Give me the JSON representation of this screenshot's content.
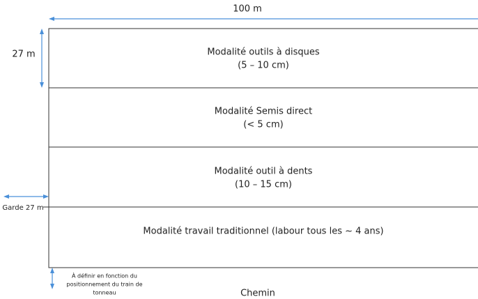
{
  "width_label": "100 m",
  "height_label": "27 m",
  "guard_label": "Garde 27 m",
  "plots": [
    {
      "label": "Modalité outils à disques",
      "depth": "(5 – 10 cm)"
    },
    {
      "label": "Modalité Semis direct",
      "depth": "(< 5 cm)"
    },
    {
      "label": "Modalité outil à dents",
      "depth": "(10 – 15 cm)"
    },
    {
      "label": "Modalité travail traditionnel (labour tous les ~ 4 ans)"
    }
  ],
  "bottom_note": [
    "À définir en fonction du",
    "positionnement du train de",
    "tonneau"
  ],
  "path_label": "Chemin"
}
